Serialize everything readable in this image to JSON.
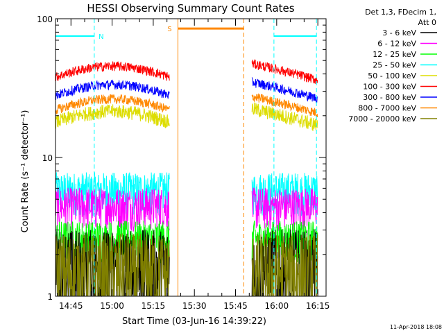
{
  "chart_data": {
    "type": "line",
    "title": "HESSI Observing Summary Count Rates",
    "ylabel": "Count Rate (s⁻¹ detector⁻¹)",
    "xlabel": "Start Time (03-Jun-16 14:39:22)",
    "y_scale": "log",
    "ylim": [
      1,
      100
    ],
    "y_ticks": [
      1,
      10,
      100
    ],
    "y_tick_labels": [
      "1",
      "10",
      "100"
    ],
    "xlim": [
      "14:39:22",
      "16:18:00"
    ],
    "x_ticks": [
      "14:45",
      "15:00",
      "15:15",
      "15:30",
      "15:45",
      "16:00",
      "16:15"
    ],
    "legend_title": "Det 1,3, FDecim 1,",
    "legend_subtitle": "Att 0",
    "legend_position": "top-right, outside plot",
    "series": [
      {
        "name": "3 - 6 keV",
        "color": "#000000",
        "level": 1.6
      },
      {
        "name": "6 - 12 keV",
        "color": "#ff00ff",
        "level": 4.5
      },
      {
        "name": "12 - 25 keV",
        "color": "#00ff00",
        "level": 2.6
      },
      {
        "name": "25 - 50 keV",
        "color": "#00ffff",
        "level": 5.8
      },
      {
        "name": "50 - 100 keV",
        "color": "#dddd00",
        "level": 18
      },
      {
        "name": "100 - 300 keV",
        "color": "#ff0000",
        "level": 38
      },
      {
        "name": "300 - 800 keV",
        "color": "#0000ff",
        "level": 28
      },
      {
        "name": "800 - 7000 keV",
        "color": "#ff8800",
        "level": 22
      },
      {
        "name": "7000 - 20000 keV",
        "color": "#808000",
        "level": 1.5
      }
    ],
    "data_segments": [
      {
        "start": "14:39:22",
        "end": "15:21:00"
      },
      {
        "start": "15:51:00",
        "end": "16:15:00"
      }
    ],
    "flags": [
      {
        "label": "N",
        "color": "#00ffff",
        "start": "14:39:22",
        "end": "14:53:30",
        "level": 75
      },
      {
        "label": "",
        "color": "#00ffff",
        "start": "15:59:00",
        "end": "16:14:30",
        "level": 75
      },
      {
        "label": "S",
        "color": "#ff8800",
        "start": "15:24:00",
        "end": "15:48:00",
        "level": 85
      }
    ]
  },
  "footer": {
    "date_stamp": "11-Apr-2018 18:08"
  }
}
